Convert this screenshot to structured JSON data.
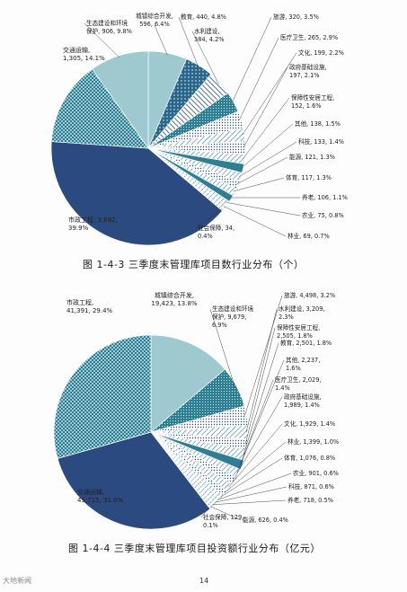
{
  "colors": {
    "navy": "#2a4a80",
    "teal": "#2d7f95",
    "light_teal": "#9ec9cf",
    "dark_pattern": "#27678a"
  },
  "chart_data": [
    {
      "type": "pie",
      "caption": "图 1-4-3    三季度末管理库项目数行业分布（个）",
      "slices": [
        {
          "label_lines": [
            "城镇综合开发,",
            "596, 6.4%"
          ],
          "value": 596,
          "percent": 6.4
        },
        {
          "label_lines": [
            "教育, 440, 4.8%"
          ],
          "value": 440,
          "percent": 4.8
        },
        {
          "label_lines": [
            "水利建设,",
            "384, 4.2%"
          ],
          "value": 384,
          "percent": 4.2
        },
        {
          "label_lines": [
            "旅游, 320, 3.5%"
          ],
          "value": 320,
          "percent": 3.5
        },
        {
          "label_lines": [
            "医疗卫生, 265, 2.9%"
          ],
          "value": 265,
          "percent": 2.9
        },
        {
          "label_lines": [
            "文化, 199, 2.2%"
          ],
          "value": 199,
          "percent": 2.2
        },
        {
          "label_lines": [
            "政府基础设施,",
            "197, 2.1%"
          ],
          "value": 197,
          "percent": 2.1
        },
        {
          "label_lines": [
            "保障性安居工程,",
            "152, 1.6%"
          ],
          "value": 152,
          "percent": 1.6
        },
        {
          "label_lines": [
            "其他, 138, 1.5%"
          ],
          "value": 138,
          "percent": 1.5
        },
        {
          "label_lines": [
            "科技, 133, 1.4%"
          ],
          "value": 133,
          "percent": 1.4
        },
        {
          "label_lines": [
            "能源, 121, 1.3%"
          ],
          "value": 121,
          "percent": 1.3
        },
        {
          "label_lines": [
            "体育, 117, 1.3%"
          ],
          "value": 117,
          "percent": 1.3
        },
        {
          "label_lines": [
            "养老, 106, 1.1%"
          ],
          "value": 106,
          "percent": 1.1
        },
        {
          "label_lines": [
            "农业, 75, 0.8%"
          ],
          "value": 75,
          "percent": 0.8
        },
        {
          "label_lines": [
            "林业, 69, 0.7%"
          ],
          "value": 69,
          "percent": 0.7
        },
        {
          "label_lines": [
            "社会保障, 34,",
            "0.4%"
          ],
          "value": 34,
          "percent": 0.4
        },
        {
          "label_lines": [
            "市政工程, 3,692,",
            "39.9%"
          ],
          "value": 3692,
          "percent": 39.9
        },
        {
          "label_lines": [
            "交通运输,",
            "1,305, 14.1%"
          ],
          "value": 1305,
          "percent": 14.1
        },
        {
          "label_lines": [
            "生态建设和环境",
            "保护, 906, 9.8%"
          ],
          "value": 906,
          "percent": 9.8
        }
      ]
    },
    {
      "type": "pie",
      "caption": "图 1-4-4    三季度末管理库项目投资额行业分布（亿元）",
      "slices": [
        {
          "label_lines": [
            "城镇综合开发,",
            "19,423, 13.8%"
          ],
          "value": 19423,
          "percent": 13.8
        },
        {
          "label_lines": [
            "生态建设和环境",
            "保护, 9,679,",
            "6.9%"
          ],
          "value": 9679,
          "percent": 6.9
        },
        {
          "label_lines": [
            "旅游, 4,498, 3.2%"
          ],
          "value": 4498,
          "percent": 3.2
        },
        {
          "label_lines": [
            "水利建设, 3,209,",
            "2.3%"
          ],
          "value": 3209,
          "percent": 2.3
        },
        {
          "label_lines": [
            "保障性安居工程,",
            "2,505, 1.8%"
          ],
          "value": 2505,
          "percent": 1.8
        },
        {
          "label_lines": [
            "教育, 2,501, 1.8%"
          ],
          "value": 2501,
          "percent": 1.8
        },
        {
          "label_lines": [
            "其他, 2,237,",
            "1.6%"
          ],
          "value": 2237,
          "percent": 1.6
        },
        {
          "label_lines": [
            "医疗卫生, 2,029,",
            "1.4%"
          ],
          "value": 2029,
          "percent": 1.4
        },
        {
          "label_lines": [
            "政府基础设施,",
            "1,989, 1.4%"
          ],
          "value": 1989,
          "percent": 1.4
        },
        {
          "label_lines": [
            "文化, 1,929, 1.4%"
          ],
          "value": 1929,
          "percent": 1.4
        },
        {
          "label_lines": [
            "林业, 1,399, 1.0%"
          ],
          "value": 1399,
          "percent": 1.0
        },
        {
          "label_lines": [
            "体育, 1,076, 0.8%"
          ],
          "value": 1076,
          "percent": 0.8
        },
        {
          "label_lines": [
            "农业, 901, 0.6%"
          ],
          "value": 901,
          "percent": 0.6
        },
        {
          "label_lines": [
            "科技, 871, 0.6%"
          ],
          "value": 871,
          "percent": 0.6
        },
        {
          "label_lines": [
            "养老, 718, 0.5%"
          ],
          "value": 718,
          "percent": 0.5
        },
        {
          "label_lines": [
            "能源, 626, 0.4%"
          ],
          "value": 626,
          "percent": 0.4
        },
        {
          "label_lines": [
            "社会保障, 129,",
            "0.1%"
          ],
          "value": 129,
          "percent": 0.1
        },
        {
          "label_lines": [
            "交通运输,",
            "43,715, 31.0%"
          ],
          "value": 43715,
          "percent": 31.0
        },
        {
          "label_lines": [
            "市政工程,",
            "41,391, 29.4%"
          ],
          "value": 41391,
          "percent": 29.4
        }
      ]
    }
  ],
  "page": {
    "page_number": "14",
    "watermark": "大地新闻"
  }
}
